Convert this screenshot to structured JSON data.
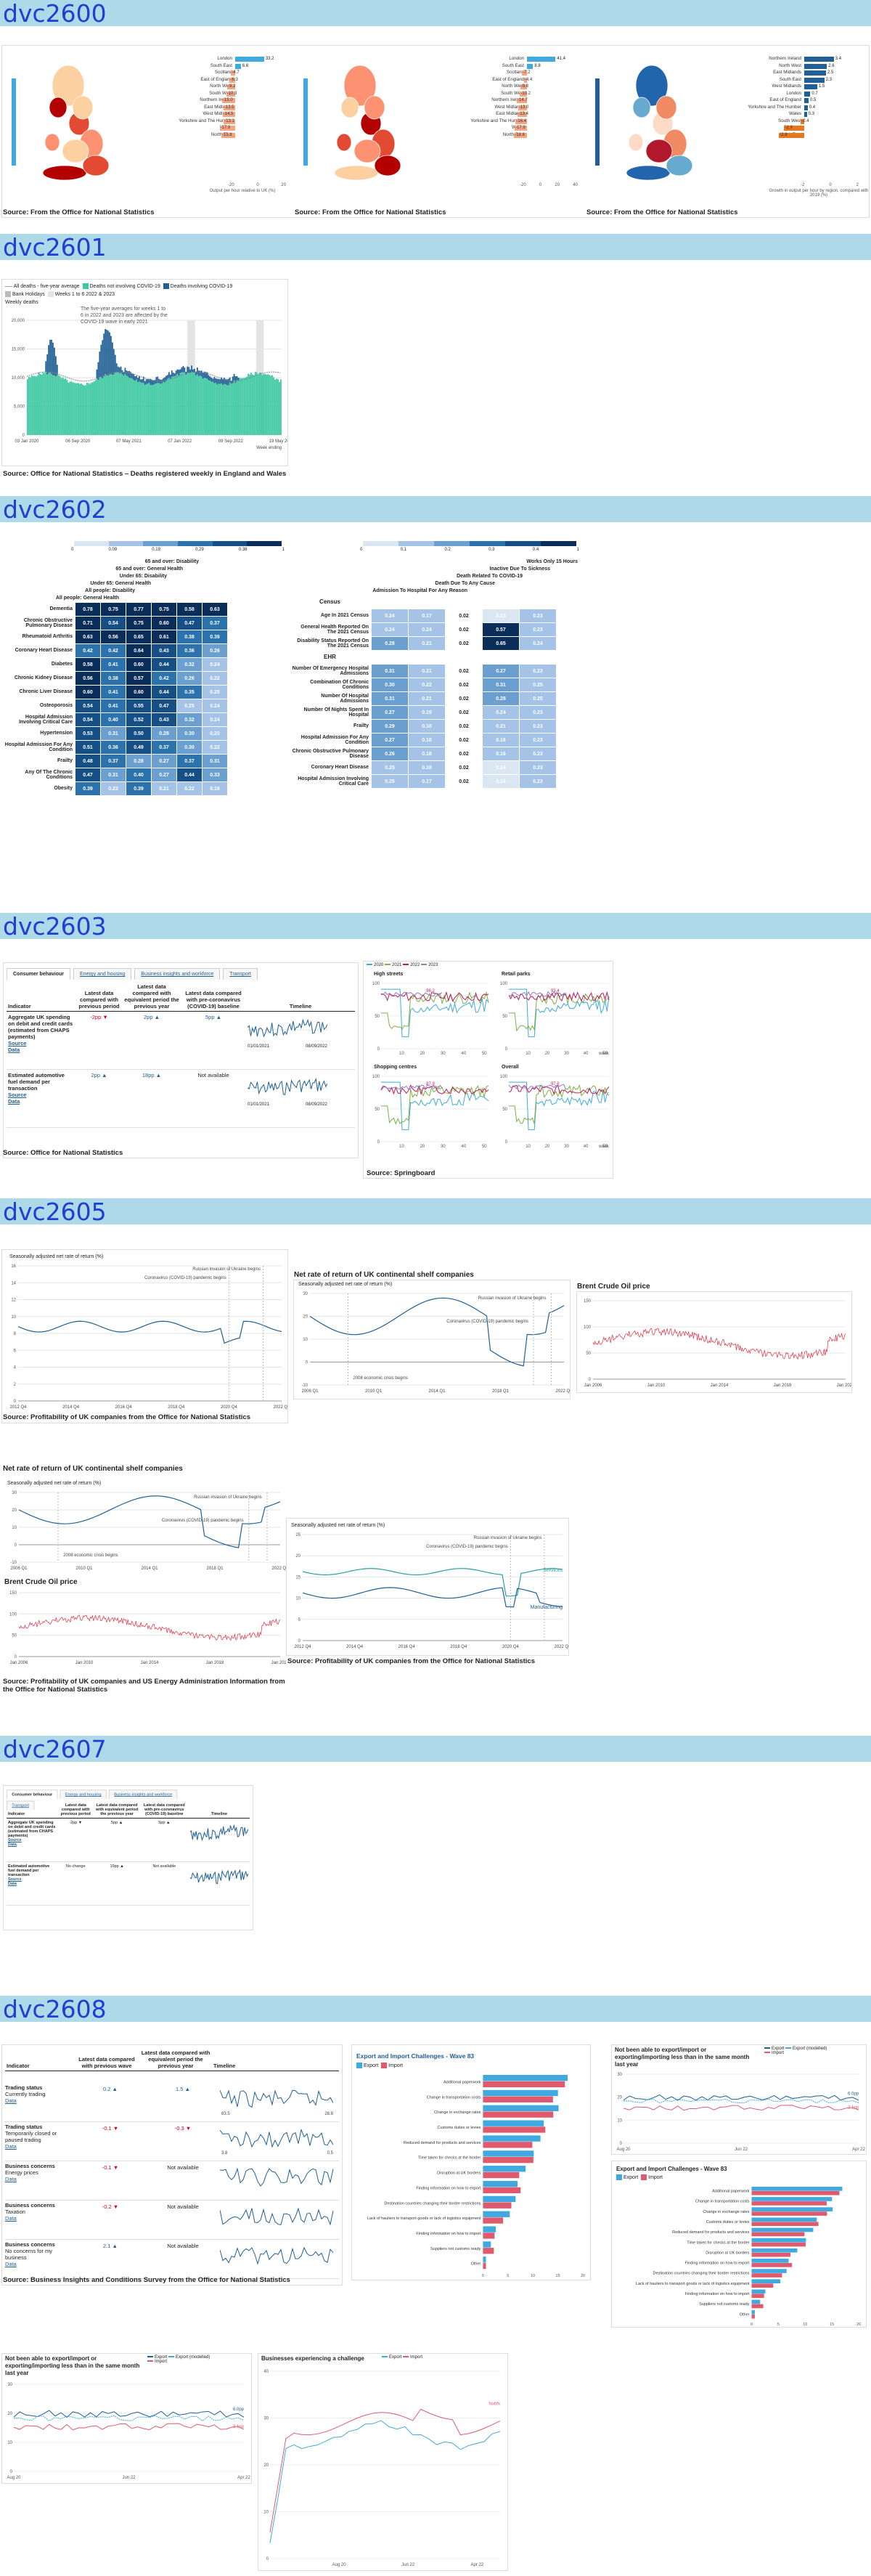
{
  "sections": {
    "s1": "dvc2600",
    "s2": "dvc2601",
    "s3": "dvc2602",
    "s4": "dvc2603",
    "s5": "dvc2605",
    "s6": "dvc2607",
    "s7": "dvc2608"
  },
  "colors": {
    "band": "#aed9e8",
    "title": "#1f3fd1",
    "blue": "#206095",
    "orange": "#e87722",
    "red": "#d0021b",
    "teal": "#27a0a0",
    "green": "#5fc3ad",
    "pink": "#e05a6e",
    "lightblue": "#3fa9e0"
  },
  "s2600": {
    "source": "Source: From the Office for National Statistics",
    "panels": [
      {
        "axis": "Output per hour relative to UK (%)",
        "ticks": [
          "-20",
          "0",
          "20"
        ],
        "items": [
          [
            "London",
            "33.2"
          ],
          [
            "South East",
            "6.6"
          ],
          [
            "Scotland",
            "-4.7"
          ],
          [
            "East of England",
            "-6.3"
          ],
          [
            "North West",
            "-9.2"
          ],
          [
            "South West",
            "-10.3"
          ],
          [
            "Northern Ireland",
            "-15.0"
          ],
          [
            "East Midlands",
            "-13.5"
          ],
          [
            "West Midlands",
            "-14.5"
          ],
          [
            "Yorkshire and The Humber",
            "-13.1"
          ],
          [
            "Wales",
            "-17.9"
          ],
          [
            "North East",
            "-15.8"
          ]
        ]
      },
      {
        "axis": "",
        "ticks": [
          "-20",
          "0",
          "20",
          "40"
        ],
        "items": [
          [
            "London",
            "41.4"
          ],
          [
            "South East",
            "8.8"
          ],
          [
            "Scotland",
            "-7.2"
          ],
          [
            "East of England",
            "-4.4"
          ],
          [
            "North West",
            "-9.8"
          ],
          [
            "South West",
            "-10.2"
          ],
          [
            "Northern Ireland",
            "-14.7"
          ],
          [
            "West Midlands",
            "-13.0"
          ],
          [
            "East Midlands",
            "-13.4"
          ],
          [
            "Yorkshire and The Humber",
            "-16.4"
          ],
          [
            "Wales",
            "-17.9"
          ],
          [
            "North East",
            "-18.6"
          ]
        ]
      },
      {
        "axis": "Growth in output per hour by region, compared with 2019 (%)",
        "ticks": [
          "-2",
          "0",
          "2"
        ],
        "items": [
          [
            "Northern Ireland",
            "3.4"
          ],
          [
            "North West",
            "2.6"
          ],
          [
            "East Midlands",
            "2.5"
          ],
          [
            "South East",
            "2.3"
          ],
          [
            "West Midlands",
            "1.5"
          ],
          [
            "London",
            "0.7"
          ],
          [
            "East of England",
            "0.5"
          ],
          [
            "Yorkshire and The Humber",
            "0.4"
          ],
          [
            "Wales",
            "0.3"
          ],
          [
            "South West",
            "-0.4"
          ],
          [
            "Scotland",
            "-2.3"
          ],
          [
            "North East",
            "-2.9"
          ]
        ]
      }
    ]
  },
  "s2601": {
    "legend": [
      "All deaths - five-year average",
      "Deaths not involving COVID-19",
      "Deaths involving COVID-19",
      "Bank Holidays",
      "Weeks 1 to 6 2022 & 2023"
    ],
    "sub": "Weekly deaths",
    "yticks": [
      "20,000",
      "15,000",
      "10,000",
      "5,000",
      "0"
    ],
    "xticks": [
      "03 Jan 2020",
      "06 Sep 2020",
      "07 May 2021",
      "07 Jan 2022",
      "09 Sep 2022",
      "19 May 2023"
    ],
    "xnote": "Week ending",
    "annotation": "The five-year averages for weeks 1 to 6 in 2022 and 2023 are affected by the COVID-19 wave in early 2021",
    "source": "Source: Office for National Statistics – Deaths registered weekly in England and Wales"
  },
  "s2602": {
    "scale1": [
      "0",
      "0.09",
      "0.19",
      "0.29",
      "0.38",
      "1"
    ],
    "scale2": [
      "0",
      "0.1",
      "0.2",
      "0.3",
      "0.4",
      "1"
    ],
    "cols1": [
      "65 and over: Disability",
      "65 and over: General Health",
      "Under 65: Disability",
      "Under 65: General Health",
      "All people: Disability",
      "All people: General Health"
    ],
    "rows1": [
      [
        "Dementia",
        "0.78",
        "0.75",
        "0.77",
        "0.75",
        "0.58",
        "0.63"
      ],
      [
        "Chronic Obstructive Pulmonary Disease",
        "0.71",
        "0.54",
        "0.75",
        "0.60",
        "0.47",
        "0.37"
      ],
      [
        "Rheumatoid Arthritis",
        "0.63",
        "0.56",
        "0.65",
        "0.61",
        "0.38",
        "0.39"
      ],
      [
        "Coronary Heart Disease",
        "0.42",
        "0.42",
        "0.64",
        "0.43",
        "0.36",
        "0.26"
      ],
      [
        "Diabetes",
        "0.58",
        "0.41",
        "0.60",
        "0.44",
        "0.32",
        "0.24"
      ],
      [
        "Chronic Kidney Disease",
        "0.56",
        "0.38",
        "0.57",
        "0.42",
        "0.26",
        "0.22"
      ],
      [
        "Chronic Liver Disease",
        "0.60",
        "0.41",
        "0.60",
        "0.44",
        "0.35",
        "0.25"
      ],
      [
        "Osteoporosis",
        "0.54",
        "0.41",
        "0.55",
        "0.47",
        "0.25",
        "0.24"
      ],
      [
        "Hospital Admission Involving Critical Care",
        "0.54",
        "0.40",
        "0.52",
        "0.43",
        "0.32",
        "0.24"
      ],
      [
        "Hypertension",
        "0.53",
        "0.31",
        "0.50",
        "0.28",
        "0.30",
        "0.20"
      ],
      [
        "Hospital Admission For Any Condition",
        "0.51",
        "0.36",
        "0.49",
        "0.37",
        "0.30",
        "0.22"
      ],
      [
        "Frailty",
        "0.48",
        "0.37",
        "0.28",
        "0.27",
        "0.37",
        "0.31"
      ],
      [
        "Any Of The Chronic Conditions",
        "0.47",
        "0.31",
        "0.40",
        "0.27",
        "0.44",
        "0.33"
      ],
      [
        "Obesity",
        "0.39",
        "0.23",
        "0.39",
        "0.21",
        "0.22",
        "0.16"
      ]
    ],
    "cols2": [
      "Works Only 15 Hours",
      "Inactive Due To Sickness",
      "Death Related To COVID-19",
      "Death Due To Any Cause",
      "Admission To Hospital For Any Reason"
    ],
    "group2a": "Census",
    "group2b": "EHR",
    "rows2a": [
      [
        "Age In 2021 Census",
        "0.24",
        "0.17",
        "0.02",
        "0.13",
        "0.23"
      ],
      [
        "General Health Reported On The 2021 Census",
        "0.24",
        "0.24",
        "0.02",
        "0.57",
        "0.23"
      ],
      [
        "Disability Status Reported On The 2021 Census",
        "0.28",
        "0.21",
        "0.02",
        "0.65",
        "0.24"
      ]
    ],
    "rows2b": [
      [
        "Number Of Emergency Hospital Admissions",
        "0.31",
        "0.21",
        "0.02",
        "0.27",
        "0.23"
      ],
      [
        "Combination Of Chronic Conditions",
        "0.30",
        "0.22",
        "0.02",
        "0.31",
        "0.25"
      ],
      [
        "Number Of Hospital Admissions",
        "0.31",
        "0.21",
        "0.02",
        "0.28",
        "0.25"
      ],
      [
        "Number Of Nights Spent In Hospital",
        "0.27",
        "0.19",
        "0.02",
        "0.24",
        "0.23"
      ],
      [
        "Frailty",
        "0.29",
        "0.18",
        "0.02",
        "0.21",
        "0.23"
      ],
      [
        "Hospital Admission For Any Condition",
        "0.27",
        "0.18",
        "0.02",
        "0.16",
        "0.23"
      ],
      [
        "Chronic Obstructive Pulmonary Disease",
        "0.26",
        "0.18",
        "0.02",
        "0.16",
        "0.23"
      ],
      [
        "Coronary Heart Disease",
        "0.25",
        "0.18",
        "0.02",
        "0.14",
        "0.23"
      ],
      [
        "Hospital Admission Involving Critical Care",
        "0.25",
        "0.17",
        "0.02",
        "0.14",
        "0.23"
      ]
    ]
  },
  "s2603": {
    "tabs": [
      "Consumer behaviour",
      "Energy and housing",
      "Business insights and workforce",
      "Transport"
    ],
    "headers": [
      "Indicator",
      "Latest data compared with previous period",
      "Latest data compared with equivalent period the previous year",
      "Latest data compared with pre-coronavirus (COVID-19) baseline",
      "Timeline"
    ],
    "rows": [
      {
        "name": "Aggregate UK spending on debit and credit cards (estimated from CHAPS payments)",
        "a": "-2pp ▼",
        "b": "2pp ▲",
        "c": "5pp ▲",
        "t1": "90",
        "t2": "01/01/2021",
        "t3": "94",
        "t4": "08/09/2022"
      },
      {
        "name": "Estimated automotive fuel demand per transaction",
        "a": "2pp ▲",
        "b": "18pp ▲",
        "c": "Not available",
        "t1": "97",
        "t2": "01/01/2021",
        "t3": "118",
        "t4": "08/09/2022"
      }
    ],
    "source_label": "Source",
    "data_label": "Data",
    "source": "Source: Office for National Statistics",
    "legend": [
      "2020",
      "2021",
      "2022",
      "2023"
    ],
    "charts": [
      "High streets",
      "Retail parks",
      "Shopping centres",
      "Overall"
    ],
    "vals": [
      "96.2",
      "93.4",
      "87.9",
      "97.6"
    ],
    "week": "week",
    "source2": "Source: Springboard"
  },
  "s2605": {
    "c1": {
      "ylabel": "Seasonally adjusted net rate of return (%)",
      "yticks": [
        "16",
        "14",
        "12",
        "10",
        "8",
        "6",
        "4",
        "2",
        "0"
      ],
      "xticks": [
        "2012 Q4",
        "2014 Q4",
        "2016 Q4",
        "2018 Q4",
        "2020 Q4",
        "2022 Q4"
      ],
      "ann1": "Russian invasion of Ukraine begins",
      "ann2": "Coronavirus (COVID-19) pandemic begins"
    },
    "c2": {
      "title": "Net rate of return of UK continental shelf companies",
      "ylabel": "Seasonally adjusted net rate of return (%)",
      "yticks": [
        "30",
        "20",
        "10",
        "0",
        "-10"
      ],
      "xticks": [
        "2006 Q1",
        "2010 Q1",
        "2014 Q1",
        "2018 Q1",
        "2022 Q1"
      ],
      "ann1": "Russian invasion of Ukraine begins",
      "ann2": "Coronavirus (COVID-19) pandemic begins",
      "ann3": "2008 economic crisis begins"
    },
    "c3": {
      "title": "Brent Crude Oil price",
      "ylabel": "US$",
      "yticks": [
        "150",
        "100",
        "50",
        "0"
      ],
      "xticks": [
        "Jan 2006",
        "Jan 2010",
        "Jan 2014",
        "Jan 2018",
        "Jan 2022"
      ]
    },
    "c5": {
      "ylabel": "Seasonally adjusted net rate of return (%)",
      "yticks": [
        "25",
        "20",
        "15",
        "10",
        "5",
        "0"
      ],
      "xticks": [
        "2012 Q4",
        "2014 Q4",
        "2016 Q4",
        "2018 Q4",
        "2020 Q4",
        "2022 Q4"
      ],
      "s1": "Services",
      "s2": "Manufacturing",
      "ann1": "Russian invasion of Ukraine begins",
      "ann2": "Coronavirus (COVID-19) pandemic begins"
    },
    "source1": "Source: Profitability of UK companies from the Office for National Statistics",
    "source2": "Source: Profitability of UK companies and US Energy Administration Information from the Office for National Statistics",
    "source3": "Source: Profitability of UK companies from the Office for National Statistics"
  },
  "s2607": {
    "tabs": [
      "Consumer behaviour",
      "Energy and housing",
      "Business insights and workforce",
      "Transport"
    ],
    "rows": [
      {
        "name": "Aggregate UK spending on debit and credit cards (estimated from CHAPS payments)",
        "a": "-2pp ▼",
        "b": "5pp ▲",
        "c": "5pp ▲"
      },
      {
        "name": "Estimated automotive fuel demand per transaction",
        "a": "No change",
        "b": "19pp ▲",
        "c": "Not available"
      }
    ]
  },
  "s2608": {
    "headers": [
      "Indicator",
      "Latest data compared with previous wave",
      "Latest data compared with equivalent period the previous year",
      "Timeline"
    ],
    "rows": [
      {
        "cat": "Trading status",
        "name": "Currently trading",
        "a": "0.2 ▲",
        "b": "1.5 ▲",
        "t1": "83.5",
        "t2": "28.8"
      },
      {
        "cat": "Trading status",
        "name": "Temporarily closed or paused trading",
        "a": "-0.1 ▼",
        "b": "-0.3 ▼",
        "t1": "3.8",
        "t2": "0.5"
      },
      {
        "cat": "Business concerns",
        "name": "Energy prices",
        "a": "-0.1 ▼",
        "b": "Not available",
        "t1": "",
        "t2": ""
      },
      {
        "cat": "Business concerns",
        "name": "Taxation",
        "a": "-0.2 ▼",
        "b": "Not available",
        "t1": "",
        "t2": ""
      },
      {
        "cat": "Business concerns",
        "name": "No concerns for my business",
        "a": "2.1 ▲",
        "b": "Not available",
        "t1": "",
        "t2": ""
      }
    ],
    "data_label": "Data",
    "source": "Source: Business Insights and Conditions Survey from the Office for National Statistics",
    "bar_title": "Export and Import Challenges - Wave 83",
    "export": "Export",
    "import": "Import",
    "bar_items": [
      "Additional paperwork",
      "Change in transportation costs",
      "Change in exchange rates",
      "Customs duties or levies",
      "Reduced demand for products and services",
      "Time taken for checks at the border",
      "Disruption at UK borders",
      "Finding information on how to export",
      "Destination countries changing their border restrictions",
      "Lack of hauliers to transport goods or lack of logistics equipment",
      "Finding information on how to import",
      "Suppliers not customs ready",
      "Other"
    ],
    "line_title": "Not been able to export/import or exporting/importing less than in the same month last year",
    "line_legend": [
      "Export",
      "Export (modelled)",
      "Import"
    ],
    "v1": "6.0pp",
    "v2": "3.1pp",
    "chal_title": "Businesses experiencing a challenge",
    "chal_val": "Nuttfx",
    "xt": [
      "Aug 20",
      "Jun 22",
      "Apr 22"
    ]
  }
}
